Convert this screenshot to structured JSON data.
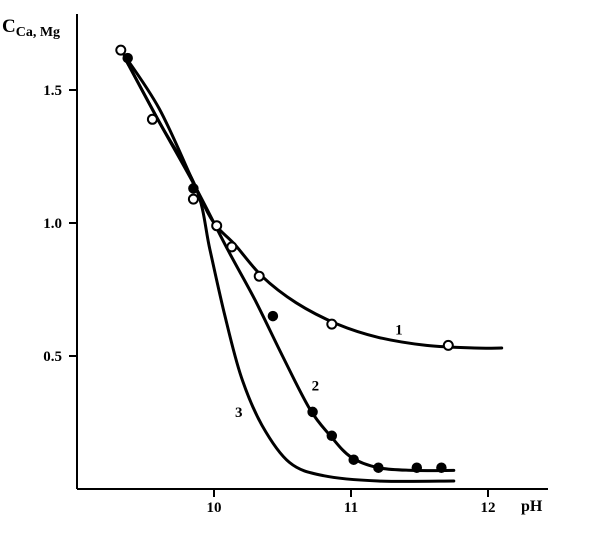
{
  "chart_data": {
    "type": "line",
    "xlabel": "pH",
    "ylabel_main": "C",
    "ylabel_sub": "Ca, Mg",
    "xlim": [
      9.0,
      12.5
    ],
    "ylim": [
      0.0,
      1.8
    ],
    "xticks": [
      {
        "value": 10,
        "label": "10"
      },
      {
        "value": 11,
        "label": "11"
      },
      {
        "value": 12,
        "label": "12"
      }
    ],
    "yticks": [
      {
        "value": 0.5,
        "label": "0.5"
      },
      {
        "value": 1.0,
        "label": "1.0"
      },
      {
        "value": 1.5,
        "label": "1.5"
      }
    ],
    "grid": false,
    "series": [
      {
        "name": "1",
        "marker": "open",
        "label_at": [
          11.35,
          0.58
        ],
        "curve": [
          [
            9.32,
            1.65
          ],
          [
            9.6,
            1.43
          ],
          [
            9.87,
            1.13
          ],
          [
            10.0,
            1.0
          ],
          [
            10.15,
            0.92
          ],
          [
            10.35,
            0.8
          ],
          [
            10.6,
            0.7
          ],
          [
            10.9,
            0.62
          ],
          [
            11.2,
            0.57
          ],
          [
            11.55,
            0.54
          ],
          [
            11.9,
            0.53
          ],
          [
            12.1,
            0.53
          ]
        ],
        "points": [
          [
            9.32,
            1.65
          ],
          [
            9.55,
            1.39
          ],
          [
            9.85,
            1.09
          ],
          [
            10.02,
            0.99
          ],
          [
            10.13,
            0.91
          ],
          [
            10.33,
            0.8
          ],
          [
            10.86,
            0.62
          ],
          [
            11.71,
            0.54
          ]
        ]
      },
      {
        "name": "2",
        "marker": "filled",
        "label_at": [
          10.74,
          0.37
        ],
        "curve": [
          [
            9.35,
            1.62
          ],
          [
            9.6,
            1.38
          ],
          [
            9.87,
            1.13
          ],
          [
            10.1,
            0.9
          ],
          [
            10.3,
            0.71
          ],
          [
            10.5,
            0.5
          ],
          [
            10.7,
            0.3
          ],
          [
            10.85,
            0.2
          ],
          [
            11.0,
            0.12
          ],
          [
            11.2,
            0.08
          ],
          [
            11.45,
            0.07
          ],
          [
            11.75,
            0.07
          ]
        ],
        "points": [
          [
            9.37,
            1.62
          ],
          [
            9.85,
            1.13
          ],
          [
            10.43,
            0.65
          ],
          [
            10.72,
            0.29
          ],
          [
            10.86,
            0.2
          ],
          [
            11.02,
            0.11
          ],
          [
            11.2,
            0.08
          ],
          [
            11.48,
            0.08
          ],
          [
            11.66,
            0.08
          ]
        ]
      },
      {
        "name": "3",
        "marker": "none",
        "label_at": [
          10.18,
          0.27
        ],
        "curve": [
          [
            9.35,
            1.62
          ],
          [
            9.6,
            1.38
          ],
          [
            9.87,
            1.13
          ],
          [
            9.97,
            0.9
          ],
          [
            10.08,
            0.65
          ],
          [
            10.2,
            0.42
          ],
          [
            10.35,
            0.24
          ],
          [
            10.55,
            0.1
          ],
          [
            10.8,
            0.05
          ],
          [
            11.2,
            0.03
          ],
          [
            11.75,
            0.03
          ]
        ],
        "points": []
      }
    ]
  }
}
